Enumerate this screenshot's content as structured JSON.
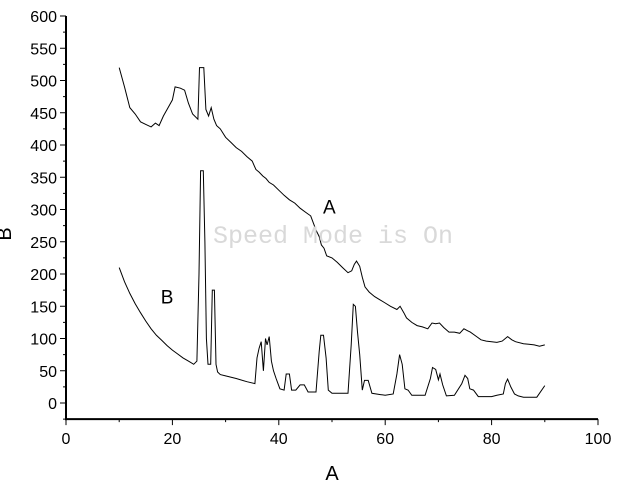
{
  "chart_data": {
    "type": "line",
    "title": "",
    "xlabel": "A",
    "ylabel": "B",
    "xlim": [
      0,
      100
    ],
    "ylim": [
      -25,
      600
    ],
    "x_ticks": [
      0,
      20,
      40,
      60,
      80,
      100
    ],
    "y_ticks": [
      0,
      50,
      100,
      150,
      200,
      250,
      300,
      350,
      400,
      450,
      500,
      550,
      600
    ],
    "grid": false,
    "watermark": "Speed Mode is On",
    "annotations": [
      {
        "text": "A",
        "x": 49.5,
        "y": 305
      },
      {
        "text": "B",
        "x": 19,
        "y": 165
      }
    ],
    "series": [
      {
        "name": "A",
        "color": "#000000",
        "points": [
          [
            10,
            520
          ],
          [
            11,
            490
          ],
          [
            12,
            458
          ],
          [
            13,
            448
          ],
          [
            14,
            436
          ],
          [
            15,
            432
          ],
          [
            16,
            428
          ],
          [
            16.8,
            434
          ],
          [
            17.5,
            430
          ],
          [
            18.3,
            445
          ],
          [
            19.2,
            458
          ],
          [
            20,
            470
          ],
          [
            20.5,
            490
          ],
          [
            21.5,
            488
          ],
          [
            22.3,
            485
          ],
          [
            23,
            465
          ],
          [
            23.8,
            448
          ],
          [
            24.8,
            440
          ],
          [
            25.1,
            520
          ],
          [
            25.9,
            520
          ],
          [
            26.3,
            455
          ],
          [
            26.8,
            445
          ],
          [
            27.3,
            458
          ],
          [
            27.8,
            440
          ],
          [
            28.3,
            430
          ],
          [
            29,
            425
          ],
          [
            30,
            412
          ],
          [
            31,
            404
          ],
          [
            32,
            396
          ],
          [
            33,
            390
          ],
          [
            34,
            382
          ],
          [
            35,
            375
          ],
          [
            35.7,
            362
          ],
          [
            36.3,
            358
          ],
          [
            37,
            352
          ],
          [
            37.6,
            348
          ],
          [
            38.2,
            342
          ],
          [
            39,
            338
          ],
          [
            40,
            330
          ],
          [
            41,
            322
          ],
          [
            42,
            315
          ],
          [
            43,
            310
          ],
          [
            44,
            302
          ],
          [
            45,
            296
          ],
          [
            46,
            290
          ],
          [
            47,
            268
          ],
          [
            47.6,
            258
          ],
          [
            48,
            245
          ],
          [
            48.5,
            240
          ],
          [
            49,
            228
          ],
          [
            50,
            225
          ],
          [
            51,
            218
          ],
          [
            52,
            210
          ],
          [
            53,
            202
          ],
          [
            53.7,
            205
          ],
          [
            54.2,
            215
          ],
          [
            54.6,
            220
          ],
          [
            55.2,
            212
          ],
          [
            55.7,
            195
          ],
          [
            56.2,
            180
          ],
          [
            57,
            172
          ],
          [
            58,
            165
          ],
          [
            59,
            160
          ],
          [
            60,
            155
          ],
          [
            61,
            150
          ],
          [
            62.2,
            145
          ],
          [
            62.8,
            150
          ],
          [
            63.5,
            140
          ],
          [
            64,
            132
          ],
          [
            65,
            125
          ],
          [
            66,
            120
          ],
          [
            67,
            118
          ],
          [
            68,
            115
          ],
          [
            68.8,
            124
          ],
          [
            69.5,
            123
          ],
          [
            70.2,
            124
          ],
          [
            71,
            117
          ],
          [
            72,
            110
          ],
          [
            73,
            110
          ],
          [
            74,
            108
          ],
          [
            74.8,
            115
          ],
          [
            75.5,
            112
          ],
          [
            76,
            110
          ],
          [
            77,
            104
          ],
          [
            78,
            98
          ],
          [
            79,
            96
          ],
          [
            80,
            95
          ],
          [
            81,
            94
          ],
          [
            82,
            96
          ],
          [
            83,
            103
          ],
          [
            83.8,
            98
          ],
          [
            84.5,
            95
          ],
          [
            86,
            92
          ],
          [
            87,
            91
          ],
          [
            88,
            90
          ],
          [
            89,
            88
          ],
          [
            90,
            90
          ]
        ]
      },
      {
        "name": "B",
        "color": "#000000",
        "points": [
          [
            10,
            210
          ],
          [
            11,
            188
          ],
          [
            12,
            170
          ],
          [
            13,
            154
          ],
          [
            14,
            140
          ],
          [
            15,
            127
          ],
          [
            16,
            115
          ],
          [
            17,
            105
          ],
          [
            18,
            97
          ],
          [
            19,
            89
          ],
          [
            20,
            82
          ],
          [
            21,
            76
          ],
          [
            22,
            70
          ],
          [
            23,
            65
          ],
          [
            24,
            60
          ],
          [
            24.6,
            65
          ],
          [
            25,
            200
          ],
          [
            25.3,
            360
          ],
          [
            25.8,
            360
          ],
          [
            26.1,
            250
          ],
          [
            26.4,
            100
          ],
          [
            26.7,
            60
          ],
          [
            27.2,
            60
          ],
          [
            27.5,
            175
          ],
          [
            27.9,
            175
          ],
          [
            28.2,
            60
          ],
          [
            28.5,
            48
          ],
          [
            29,
            44
          ],
          [
            30,
            42
          ],
          [
            32,
            38
          ],
          [
            34,
            33
          ],
          [
            35.5,
            30
          ],
          [
            35.9,
            70
          ],
          [
            36.3,
            85
          ],
          [
            36.7,
            95
          ],
          [
            37.1,
            50
          ],
          [
            37.5,
            100
          ],
          [
            37.8,
            90
          ],
          [
            38.2,
            103
          ],
          [
            38.6,
            65
          ],
          [
            39,
            50
          ],
          [
            39.5,
            38
          ],
          [
            40.2,
            22
          ],
          [
            41,
            20
          ],
          [
            41.4,
            45
          ],
          [
            42,
            45
          ],
          [
            42.4,
            20
          ],
          [
            43.2,
            20
          ],
          [
            44,
            28
          ],
          [
            44.8,
            28
          ],
          [
            45.5,
            17
          ],
          [
            47,
            17
          ],
          [
            47.6,
            80
          ],
          [
            47.9,
            105
          ],
          [
            48.4,
            105
          ],
          [
            48.9,
            70
          ],
          [
            49.3,
            20
          ],
          [
            50,
            15
          ],
          [
            53,
            15
          ],
          [
            53.6,
            90
          ],
          [
            54,
            153
          ],
          [
            54.4,
            150
          ],
          [
            54.8,
            110
          ],
          [
            55.2,
            75
          ],
          [
            55.7,
            20
          ],
          [
            56.1,
            35
          ],
          [
            56.8,
            35
          ],
          [
            57.5,
            15
          ],
          [
            60,
            12
          ],
          [
            61.5,
            14
          ],
          [
            62.2,
            45
          ],
          [
            62.7,
            75
          ],
          [
            63.2,
            60
          ],
          [
            63.7,
            22
          ],
          [
            64.3,
            20
          ],
          [
            65,
            12
          ],
          [
            67.5,
            12
          ],
          [
            68.5,
            38
          ],
          [
            68.9,
            55
          ],
          [
            69.5,
            52
          ],
          [
            70,
            36
          ],
          [
            70.3,
            45
          ],
          [
            70.8,
            28
          ],
          [
            71.5,
            11
          ],
          [
            73,
            12
          ],
          [
            74.4,
            30
          ],
          [
            75,
            43
          ],
          [
            75.5,
            38
          ],
          [
            75.9,
            22
          ],
          [
            76.6,
            20
          ],
          [
            77.5,
            10
          ],
          [
            80,
            10
          ],
          [
            81,
            12
          ],
          [
            82.2,
            14
          ],
          [
            82.6,
            30
          ],
          [
            83,
            37
          ],
          [
            83.6,
            25
          ],
          [
            84.3,
            14
          ],
          [
            85,
            11
          ],
          [
            86,
            9
          ],
          [
            88.5,
            9
          ],
          [
            90,
            27
          ]
        ]
      }
    ]
  }
}
